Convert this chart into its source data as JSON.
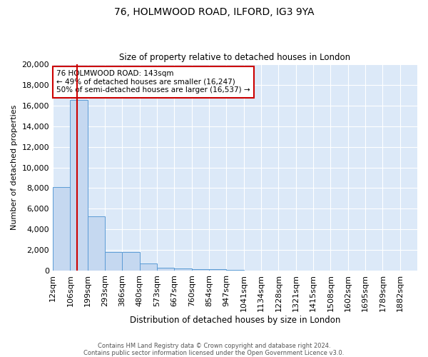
{
  "title1": "76, HOLMWOOD ROAD, ILFORD, IG3 9YA",
  "title2": "Size of property relative to detached houses in London",
  "xlabel": "Distribution of detached houses by size in London",
  "ylabel": "Number of detached properties",
  "bin_labels": [
    "12sqm",
    "106sqm",
    "199sqm",
    "293sqm",
    "386sqm",
    "480sqm",
    "573sqm",
    "667sqm",
    "760sqm",
    "854sqm",
    "947sqm",
    "1041sqm",
    "1134sqm",
    "1228sqm",
    "1321sqm",
    "1415sqm",
    "1508sqm",
    "1602sqm",
    "1695sqm",
    "1789sqm",
    "1882sqm"
  ],
  "bar_heights": [
    8100,
    16500,
    5300,
    1850,
    1850,
    700,
    320,
    220,
    190,
    180,
    130,
    0,
    0,
    0,
    0,
    0,
    0,
    0,
    0,
    0,
    0
  ],
  "bar_color": "#c5d8f0",
  "bar_edge_color": "#5b9bd5",
  "annotation_text": "76 HOLMWOOD ROAD: 143sqm\n← 49% of detached houses are smaller (16,247)\n50% of semi-detached houses are larger (16,537) →",
  "annotation_box_color": "#ffffff",
  "annotation_box_edge": "#cc0000",
  "red_line_color": "#cc0000",
  "footer1": "Contains HM Land Registry data © Crown copyright and database right 2024.",
  "footer2": "Contains public sector information licensed under the Open Government Licence v3.0.",
  "bg_color": "#dce9f8",
  "ylim": [
    0,
    20000
  ],
  "yticks": [
    0,
    2000,
    4000,
    6000,
    8000,
    10000,
    12000,
    14000,
    16000,
    18000,
    20000
  ]
}
